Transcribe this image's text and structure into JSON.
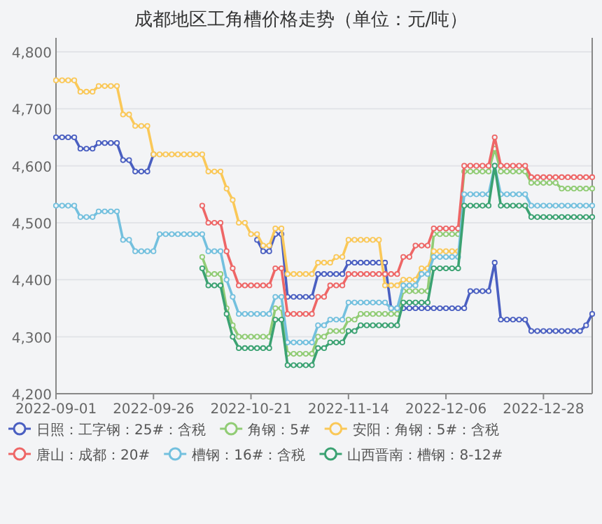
{
  "chart_data": {
    "type": "line",
    "title": "成都地区工角槽价格走势（单位：元/吨）",
    "categories": [
      "2022-09-01",
      null,
      null,
      null,
      null,
      null,
      null,
      null,
      null,
      null,
      null,
      null,
      null,
      null,
      null,
      null,
      "2022-09-26",
      null,
      null,
      null,
      null,
      null,
      null,
      null,
      null,
      null,
      null,
      null,
      null,
      null,
      null,
      null,
      "2022-10-21",
      null,
      null,
      null,
      null,
      null,
      null,
      null,
      null,
      null,
      null,
      null,
      null,
      null,
      null,
      null,
      "2022-11-14",
      null,
      null,
      null,
      null,
      null,
      null,
      null,
      null,
      null,
      null,
      null,
      null,
      null,
      null,
      null,
      "2022-12-06",
      null,
      null,
      null,
      null,
      null,
      null,
      null,
      null,
      null,
      null,
      null,
      null,
      null,
      null,
      null,
      "2022-12-28",
      null,
      null,
      null,
      null,
      null,
      null,
      null,
      null
    ],
    "ylim": [
      4200,
      4800
    ],
    "yticks": [
      {
        "value": 4200,
        "label": "4,200"
      },
      {
        "value": 4300,
        "label": "4,300"
      },
      {
        "value": 4400,
        "label": "4,400"
      },
      {
        "value": 4500,
        "label": "4,500"
      },
      {
        "value": 4600,
        "label": "4,600"
      },
      {
        "value": 4700,
        "label": "4,700"
      },
      {
        "value": 4800,
        "label": "4,800"
      }
    ],
    "grid": "y",
    "legend": "bottom",
    "marker": "circle",
    "line_style": "solid",
    "series": [
      {
        "name": "日照：工字钢：25#：含税",
        "color": "#4a5fc1",
        "values": [
          4650,
          4650,
          4650,
          4650,
          4630,
          4630,
          4630,
          4640,
          4640,
          4640,
          4640,
          4610,
          4610,
          4590,
          4590,
          4590,
          4620,
          null,
          null,
          null,
          null,
          null,
          null,
          null,
          null,
          null,
          null,
          null,
          null,
          null,
          null,
          null,
          null,
          4470,
          4450,
          4450,
          4480,
          4480,
          4370,
          4370,
          4370,
          4370,
          4370,
          4410,
          4410,
          4410,
          4410,
          4410,
          4430,
          4430,
          4430,
          4430,
          4430,
          4430,
          4430,
          4350,
          4350,
          4350,
          4350,
          4350,
          4350,
          4350,
          4350,
          4350,
          4350,
          4350,
          4350,
          4350,
          4380,
          4380,
          4380,
          4380,
          4430,
          4330,
          4330,
          4330,
          4330,
          4330,
          4310,
          4310,
          4310,
          4310,
          4310,
          4310,
          4310,
          4310,
          4310,
          4320,
          4340
        ]
      },
      {
        "name": "角钢：5#",
        "color": "#91cc75",
        "values": [
          null,
          null,
          null,
          null,
          null,
          null,
          null,
          null,
          null,
          null,
          null,
          null,
          null,
          null,
          null,
          null,
          null,
          null,
          null,
          null,
          null,
          null,
          null,
          null,
          4440,
          4410,
          4410,
          4410,
          4350,
          4320,
          4300,
          4300,
          4300,
          4300,
          4300,
          4300,
          4350,
          4350,
          4270,
          4270,
          4270,
          4270,
          4270,
          4300,
          4300,
          4310,
          4310,
          4310,
          4330,
          4330,
          4340,
          4340,
          4340,
          4340,
          4340,
          4340,
          4340,
          4380,
          4380,
          4380,
          4380,
          4380,
          4480,
          4480,
          4480,
          4480,
          4480,
          4590,
          4590,
          4590,
          4590,
          4590,
          4630,
          4590,
          4590,
          4590,
          4590,
          4590,
          4570,
          4570,
          4570,
          4570,
          4570,
          4560,
          4560,
          4560,
          4560,
          4560,
          4560
        ]
      },
      {
        "name": "安阳：角钢：5#：含税",
        "color": "#fac858",
        "values": [
          4750,
          4750,
          4750,
          4750,
          4730,
          4730,
          4730,
          4740,
          4740,
          4740,
          4740,
          4690,
          4690,
          4670,
          4670,
          4670,
          4620,
          4620,
          4620,
          4620,
          4620,
          4620,
          4620,
          4620,
          4620,
          4590,
          4590,
          4590,
          4560,
          4540,
          4500,
          4500,
          4480,
          4480,
          4460,
          4460,
          4490,
          4490,
          4410,
          4410,
          4410,
          4410,
          4410,
          4430,
          4430,
          4430,
          4440,
          4440,
          4470,
          4470,
          4470,
          4470,
          4470,
          4470,
          4390,
          4390,
          4390,
          4400,
          4400,
          4400,
          4420,
          4420,
          4450,
          4450,
          4450,
          4450,
          4450,
          null,
          null,
          null,
          null,
          null,
          null,
          null,
          null,
          null,
          null,
          null,
          null,
          null,
          null,
          null,
          null,
          null,
          null,
          null,
          null,
          null,
          null
        ]
      },
      {
        "name": "唐山：成都：20#",
        "color": "#ee6666",
        "values": [
          null,
          null,
          null,
          null,
          null,
          null,
          null,
          null,
          null,
          null,
          null,
          null,
          null,
          null,
          null,
          null,
          null,
          null,
          null,
          null,
          null,
          null,
          null,
          null,
          4530,
          4500,
          4500,
          4500,
          4450,
          4420,
          4390,
          4390,
          4390,
          4390,
          4390,
          4390,
          4420,
          4420,
          4340,
          4340,
          4340,
          4340,
          4340,
          4370,
          4370,
          4390,
          4390,
          4390,
          4410,
          4410,
          4410,
          4410,
          4410,
          4410,
          4410,
          4410,
          4410,
          4440,
          4440,
          4460,
          4460,
          4460,
          4490,
          4490,
          4490,
          4490,
          4490,
          4600,
          4600,
          4600,
          4600,
          4600,
          4650,
          4600,
          4600,
          4600,
          4600,
          4600,
          4580,
          4580,
          4580,
          4580,
          4580,
          4580,
          4580,
          4580,
          4580,
          4580,
          4580
        ]
      },
      {
        "name": "槽钢：16#：含税",
        "color": "#73c0de",
        "values": [
          4530,
          4530,
          4530,
          4530,
          4510,
          4510,
          4510,
          4520,
          4520,
          4520,
          4520,
          4470,
          4470,
          4450,
          4450,
          4450,
          4450,
          4480,
          4480,
          4480,
          4480,
          4480,
          4480,
          4480,
          4480,
          4450,
          4450,
          4450,
          4400,
          4370,
          4340,
          4340,
          4340,
          4340,
          4340,
          4340,
          4370,
          4370,
          4290,
          4290,
          4290,
          4290,
          4290,
          4320,
          4320,
          4330,
          4330,
          4330,
          4360,
          4360,
          4360,
          4360,
          4360,
          4360,
          4360,
          4350,
          4350,
          4390,
          4390,
          4390,
          4410,
          4410,
          4440,
          4440,
          4440,
          4440,
          4440,
          4550,
          4550,
          4550,
          4550,
          4550,
          4600,
          4550,
          4550,
          4550,
          4550,
          4550,
          4530,
          4530,
          4530,
          4530,
          4530,
          4530,
          4530,
          4530,
          4530,
          4530,
          4530
        ]
      },
      {
        "name": "山西晋南：槽钢：8-12#",
        "color": "#3ba272",
        "values": [
          null,
          null,
          null,
          null,
          null,
          null,
          null,
          null,
          null,
          null,
          null,
          null,
          null,
          null,
          null,
          null,
          null,
          null,
          null,
          null,
          null,
          null,
          null,
          null,
          4420,
          4390,
          4390,
          4390,
          4340,
          4300,
          4280,
          4280,
          4280,
          4280,
          4280,
          4280,
          4330,
          4330,
          4250,
          4250,
          4250,
          4250,
          4250,
          4280,
          4280,
          4290,
          4290,
          4290,
          4310,
          4310,
          4320,
          4320,
          4320,
          4320,
          4320,
          4320,
          4320,
          4360,
          4360,
          4360,
          4360,
          4360,
          4420,
          4420,
          4420,
          4420,
          4420,
          4530,
          4530,
          4530,
          4530,
          4530,
          4600,
          4530,
          4530,
          4530,
          4530,
          4530,
          4510,
          4510,
          4510,
          4510,
          4510,
          4510,
          4510,
          4510,
          4510,
          4510,
          4510
        ]
      }
    ]
  }
}
